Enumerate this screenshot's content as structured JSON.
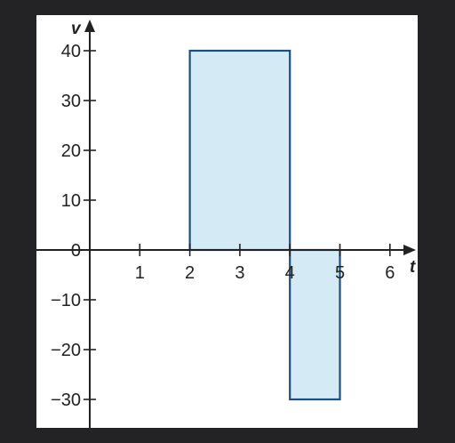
{
  "chart_data": {
    "type": "bar",
    "xlabel": "t",
    "ylabel": "v",
    "xlim": [
      0,
      6.5
    ],
    "ylim": [
      -35,
      43
    ],
    "x_ticks": [
      "1",
      "2",
      "3",
      "4",
      "5",
      "6"
    ],
    "y_ticks": [
      "40",
      "30",
      "20",
      "10",
      "0",
      "−10",
      "−20",
      "−30"
    ],
    "rectangles": [
      {
        "x_start": 2,
        "x_end": 4,
        "value": 40
      },
      {
        "x_start": 4,
        "x_end": 5,
        "value": -30
      }
    ],
    "grid": false,
    "colors": {
      "fill": "#d4ebf5",
      "stroke": "#1b4f82",
      "axis": "#222222",
      "background": "#ffffff",
      "frame": "#232325"
    }
  }
}
